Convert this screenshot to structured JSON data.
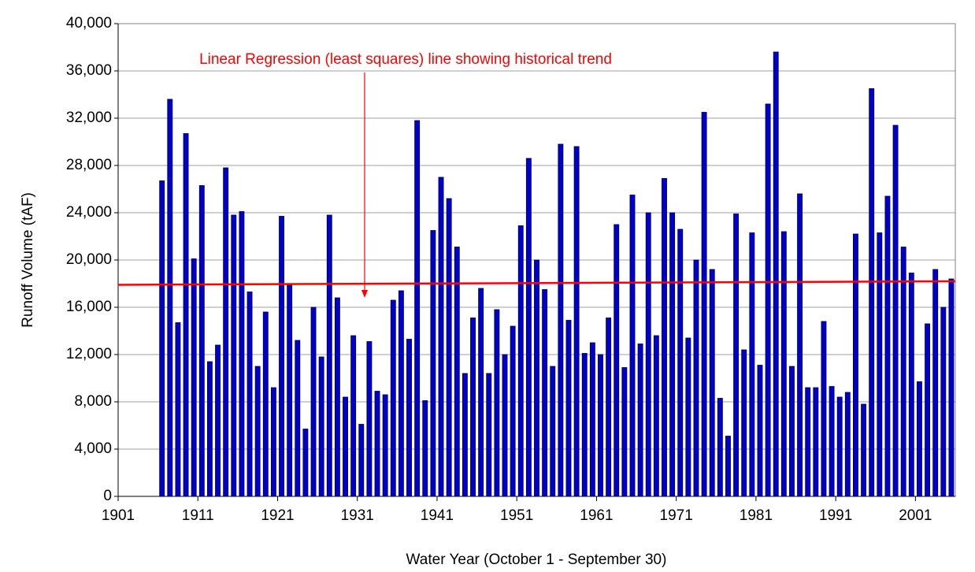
{
  "chart_data": {
    "type": "bar",
    "x_label": "Water Year  (October 1 - September 30)",
    "y_label": "Runoff Volume (tAF)",
    "annotation": "Linear Regression (least squares) line showing historical trend",
    "x": [
      1906,
      1907,
      1908,
      1909,
      1910,
      1911,
      1912,
      1913,
      1914,
      1915,
      1916,
      1917,
      1918,
      1919,
      1920,
      1921,
      1922,
      1923,
      1924,
      1925,
      1926,
      1927,
      1928,
      1929,
      1930,
      1931,
      1932,
      1933,
      1934,
      1935,
      1936,
      1937,
      1938,
      1939,
      1940,
      1941,
      1942,
      1943,
      1944,
      1945,
      1946,
      1947,
      1948,
      1949,
      1950,
      1951,
      1952,
      1953,
      1954,
      1955,
      1956,
      1957,
      1958,
      1959,
      1960,
      1961,
      1962,
      1963,
      1964,
      1965,
      1966,
      1967,
      1968,
      1969,
      1970,
      1971,
      1972,
      1973,
      1974,
      1975,
      1976,
      1977,
      1978,
      1979,
      1980,
      1981,
      1982,
      1983,
      1984,
      1985,
      1986,
      1987,
      1988,
      1989,
      1990,
      1991,
      1992,
      1993,
      1994,
      1995,
      1996,
      1997,
      1998,
      1999,
      2000,
      2001,
      2002,
      2003,
      2004,
      2005
    ],
    "values": [
      26700,
      33600,
      14700,
      30700,
      20100,
      26300,
      11400,
      12800,
      27800,
      23800,
      24100,
      17300,
      11000,
      15600,
      9200,
      23700,
      17900,
      13200,
      5700,
      16000,
      11800,
      23800,
      16800,
      8400,
      13600,
      6100,
      13100,
      8900,
      8600,
      16600,
      17400,
      13300,
      31800,
      8100,
      22500,
      27000,
      25200,
      21100,
      10400,
      15100,
      17600,
      10400,
      15800,
      12000,
      14400,
      22900,
      28600,
      20000,
      17500,
      11000,
      29800,
      14900,
      29600,
      12100,
      13000,
      12000,
      15100,
      23000,
      10900,
      25500,
      12900,
      24000,
      13600,
      26900,
      24000,
      22600,
      13400,
      20000,
      32500,
      19200,
      8300,
      5100,
      23900,
      12400,
      22300,
      11100,
      33200,
      37600,
      22400,
      11000,
      25600,
      9200,
      9200,
      14800,
      9300,
      8400,
      8800,
      22200,
      7800,
      34500,
      22300,
      25400,
      31400,
      21100,
      18900,
      9700,
      14600,
      19200,
      16000,
      18400
    ],
    "color": "#0000cc",
    "trend": {
      "x": [
        1901,
        2006
      ],
      "values": [
        17900,
        18200
      ],
      "color": "#ff0000"
    },
    "xlim": [
      1901,
      2006
    ],
    "xticks": [
      1901,
      1911,
      1921,
      1931,
      1941,
      1951,
      1961,
      1971,
      1981,
      1991,
      2001
    ],
    "ylim": [
      0,
      40000
    ],
    "yticks": [
      0,
      {
        "value": 4000,
        "label": "4,000"
      },
      {
        "value": 8000,
        "label": "8,000"
      },
      {
        "value": 12000,
        "label": "12,000"
      },
      {
        "value": 16000,
        "label": "16,000"
      },
      {
        "value": 20000,
        "label": "20,000"
      },
      {
        "value": 24000,
        "label": "24,000"
      },
      {
        "value": 28000,
        "label": "28,000"
      },
      {
        "value": 32000,
        "label": "32,000"
      },
      {
        "value": 36000,
        "label": "36,000"
      },
      {
        "value": 40000,
        "label": "40,000"
      }
    ],
    "grid": true
  }
}
